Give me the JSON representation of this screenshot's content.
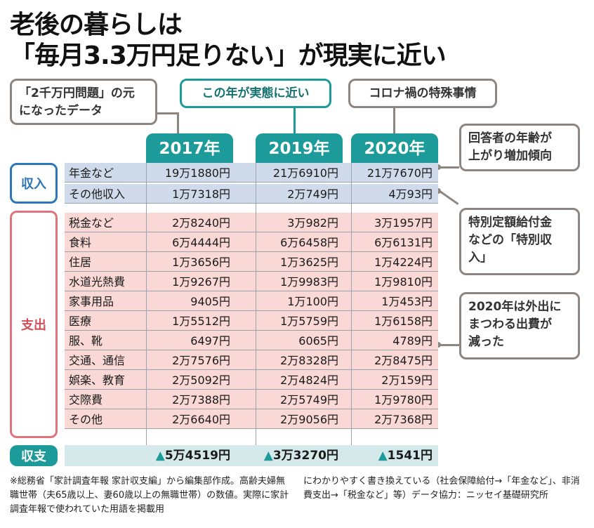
{
  "title": {
    "line1": "老後の暮らしは",
    "line2": "「毎月3.3万円足りない」が現実に近い"
  },
  "callouts": {
    "origin": "「2千万円問題」の元\nになったデータ",
    "close_to_reality": "この年が実態に近い",
    "corona": "コロナ禍の特殊事情",
    "age": "回答者の年齢が\n上がり増加傾向",
    "special_income": "特別定額給付金\nなどの「特別収\n入」",
    "outings": "2020年は外出に\nまつわる出費が\n減った"
  },
  "chart_data": {
    "type": "table",
    "columns": [
      "2017年",
      "2019年",
      "2020年"
    ],
    "groups": {
      "income": "収入",
      "expense": "支出",
      "balance": "収支"
    },
    "income_rows": [
      {
        "label": "年金など",
        "values": [
          "19万1880円",
          "21万6910円",
          "21万7670円"
        ]
      },
      {
        "label": "その他収入",
        "values": [
          "1万7318円",
          "2万749円",
          "4万93円"
        ]
      }
    ],
    "expense_rows": [
      {
        "label": "税金など",
        "values": [
          "2万8240円",
          "3万982円",
          "3万1957円"
        ]
      },
      {
        "label": "食料",
        "values": [
          "6万4444円",
          "6万6458円",
          "6万6131円"
        ]
      },
      {
        "label": "住居",
        "values": [
          "1万3656円",
          "1万3625円",
          "1万4224円"
        ]
      },
      {
        "label": "水道光熱費",
        "values": [
          "1万9267円",
          "1万9983円",
          "1万9810円"
        ]
      },
      {
        "label": "家事用品",
        "values": [
          "9405円",
          "1万100円",
          "1万453円"
        ]
      },
      {
        "label": "医療",
        "values": [
          "1万5512円",
          "1万5759円",
          "1万6158円"
        ]
      },
      {
        "label": "服、靴",
        "values": [
          "6497円",
          "6065円",
          "4789円"
        ]
      },
      {
        "label": "交通、通信",
        "values": [
          "2万7576円",
          "2万8328円",
          "2万8475円"
        ]
      },
      {
        "label": "娯楽、教育",
        "values": [
          "2万5092円",
          "2万4824円",
          "2万159円"
        ]
      },
      {
        "label": "交際費",
        "values": [
          "2万7388円",
          "2万5749円",
          "1万9780円"
        ]
      },
      {
        "label": "その他",
        "values": [
          "2万6640円",
          "2万9056円",
          "2万7368円"
        ]
      }
    ],
    "balance_row": {
      "values": [
        "5万4519円",
        "3万3270円",
        "1541円"
      ],
      "sign": "▲"
    }
  },
  "notes": {
    "left": "※総務省「家計調査年報 家計収支編」から編集部作成。高齢夫婦無職世帯（夫65歳以上、妻60歳以上の無職世帯）の数値。実際に家計調査年報で使われていた用語を掲載用",
    "right": "にわかりやすく書き換えている（社会保障給付→「年金など」、非消費支出→「税金など」等）データ協力：ニッセイ基礎研究所"
  }
}
